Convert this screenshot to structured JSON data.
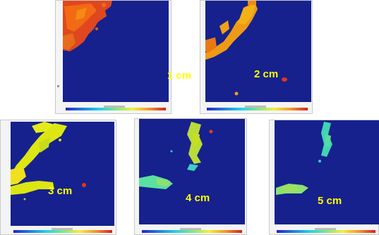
{
  "panels": [
    {
      "label": "1 cm"
    },
    {
      "label": "2 cm"
    },
    {
      "label": "3 cm"
    },
    {
      "label": "4 cm"
    },
    {
      "label": "5 cm"
    }
  ],
  "colors": {
    "background": "#16218d",
    "label": "#ffff00",
    "colormap": [
      "#2323c8",
      "#1e7de6",
      "#20d2e6",
      "#7de68c",
      "#f0f03c",
      "#f59628",
      "#dc1e1e"
    ]
  }
}
